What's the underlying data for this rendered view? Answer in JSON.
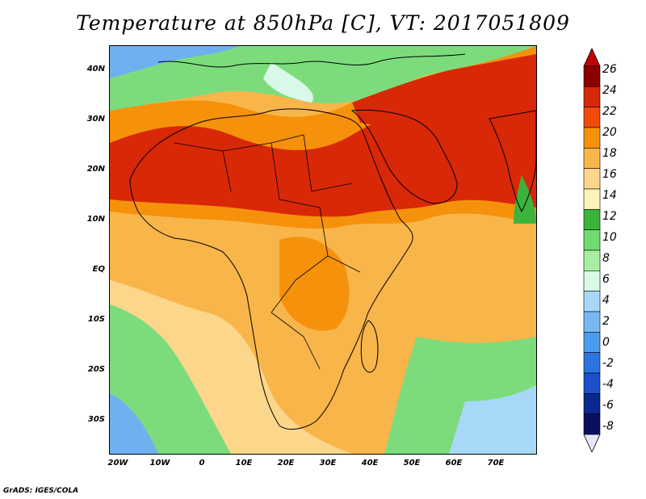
{
  "title": "Temperature at 850hPa [C], VT: 2017051809",
  "footer": "GrADS: IGES/COLA",
  "lat_axis": {
    "labels": [
      "40N",
      "30N",
      "20N",
      "10N",
      "EQ",
      "10S",
      "20S",
      "30S"
    ],
    "values": [
      40,
      30,
      20,
      10,
      0,
      -10,
      -20,
      -30
    ],
    "range": [
      -37,
      45
    ]
  },
  "lon_axis": {
    "labels": [
      "20W",
      "10W",
      "0",
      "10E",
      "20E",
      "30E",
      "40E",
      "50E",
      "60E",
      "70E"
    ],
    "values": [
      -20,
      -10,
      0,
      10,
      20,
      30,
      40,
      50,
      60,
      70
    ],
    "range": [
      -22,
      80
    ]
  },
  "colorbar": {
    "labels": [
      "26",
      "24",
      "22",
      "20",
      "18",
      "16",
      "14",
      "12",
      "10",
      "8",
      "6",
      "4",
      "2",
      "0",
      "-2",
      "-4",
      "-6",
      "-8"
    ],
    "colors": [
      "#8b0000",
      "#d82808",
      "#f04b0a",
      "#f6910c",
      "#f8b54a",
      "#fcd68a",
      "#fdf3b8",
      "#3cb43c",
      "#6edc6e",
      "#a8eea0",
      "#d8f8e8",
      "#a8d8f8",
      "#78b8f0",
      "#4a9cf0",
      "#2c74e0",
      "#1a50c8",
      "#0a2890",
      "#0a1060"
    ],
    "over_color": "#c00000",
    "under_color": "#e6e6ff"
  },
  "map": {
    "color_bands": [
      {
        "level": "ocean-south",
        "color": "#6fb0f0"
      },
      {
        "level": "cool",
        "color": "#7cdc7c"
      },
      {
        "level": "mild",
        "color": "#fcd68a"
      },
      {
        "level": "warm",
        "color": "#f8b54a"
      },
      {
        "level": "hot",
        "color": "#f6910c"
      },
      {
        "level": "very-hot",
        "color": "#d82808"
      }
    ]
  }
}
